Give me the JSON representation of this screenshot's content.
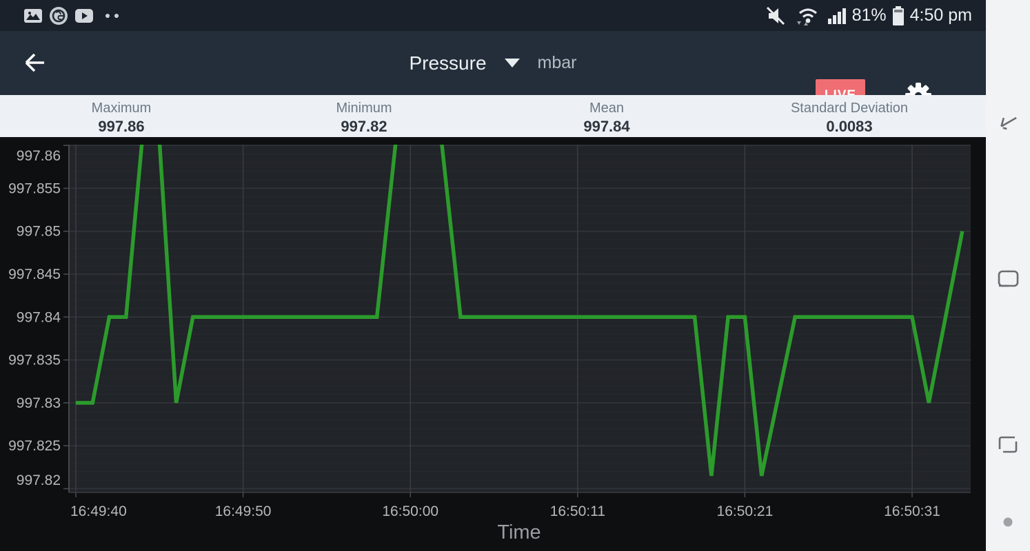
{
  "status_bar": {
    "battery_percent": "81%",
    "time": "4:50 pm",
    "left_icons": [
      "gallery-icon",
      "ge-logo-icon",
      "play-icon",
      "more-notifications-dots"
    ],
    "right_icons": [
      "mute-icon",
      "wifi-icon",
      "signal-icon",
      "battery-icon"
    ]
  },
  "header": {
    "title": "Pressure",
    "unit": "mbar",
    "live_label": "LIVE",
    "live_color": "#ee6e73",
    "icons": [
      "back-arrow-icon",
      "dropdown-caret-icon",
      "gear-icon"
    ]
  },
  "stats": [
    {
      "label": "Maximum",
      "value": "997.86"
    },
    {
      "label": "Minimum",
      "value": "997.82"
    },
    {
      "label": "Mean",
      "value": "997.84"
    },
    {
      "label": "Standard Deviation",
      "value": "0.0083"
    }
  ],
  "chart_data": {
    "type": "line",
    "title": "",
    "xlabel": "Time",
    "ylabel": "",
    "line_color": "#2c9b2c",
    "plot_bg": "#212429",
    "grid": true,
    "legend": false,
    "x_is_sample_index": true,
    "seconds_per_sample": 1.04,
    "x_ticks": [
      {
        "index": 0,
        "label": "16:49:40"
      },
      {
        "index": 10,
        "label": "16:49:50"
      },
      {
        "index": 20,
        "label": "16:50:00"
      },
      {
        "index": 30,
        "label": "16:50:11"
      },
      {
        "index": 40,
        "label": "16:50:21"
      },
      {
        "index": 50,
        "label": "16:50:31"
      }
    ],
    "y_ticks": [
      {
        "value": 997.86,
        "label": "997.86"
      },
      {
        "value": 997.855,
        "label": "997.855"
      },
      {
        "value": 997.85,
        "label": "997.85"
      },
      {
        "value": 997.845,
        "label": "997.845"
      },
      {
        "value": 997.84,
        "label": "997.84"
      },
      {
        "value": 997.835,
        "label": "997.835"
      },
      {
        "value": 997.83,
        "label": "997.83"
      },
      {
        "value": 997.825,
        "label": "997.825"
      },
      {
        "value": 997.82,
        "label": "997.82"
      }
    ],
    "ylim_visible": [
      997.8195,
      997.8601
    ],
    "minor_grid_step": 0.001,
    "peaks_clipped_at_top": true,
    "series": [
      {
        "name": "Pressure (mbar)",
        "points": [
          [
            0,
            997.83
          ],
          [
            1,
            997.83
          ],
          [
            2,
            997.84
          ],
          [
            3,
            997.84
          ],
          [
            4.1,
            997.8635
          ],
          [
            4.9,
            997.8635
          ],
          [
            6,
            997.83
          ],
          [
            7,
            997.84
          ],
          [
            18,
            997.84
          ],
          [
            19.3,
            997.8635
          ],
          [
            21.7,
            997.8635
          ],
          [
            23,
            997.84
          ],
          [
            37,
            997.84
          ],
          [
            38,
            997.8215
          ],
          [
            39,
            997.84
          ],
          [
            40,
            997.84
          ],
          [
            41,
            997.8215
          ],
          [
            43,
            997.84
          ],
          [
            50,
            997.84
          ],
          [
            51,
            997.83
          ],
          [
            53,
            997.85
          ]
        ]
      }
    ]
  },
  "nav_bar": {
    "icons": [
      "nav-back-icon",
      "nav-home-icon",
      "nav-recents-icon",
      "nav-hide-dot"
    ]
  }
}
